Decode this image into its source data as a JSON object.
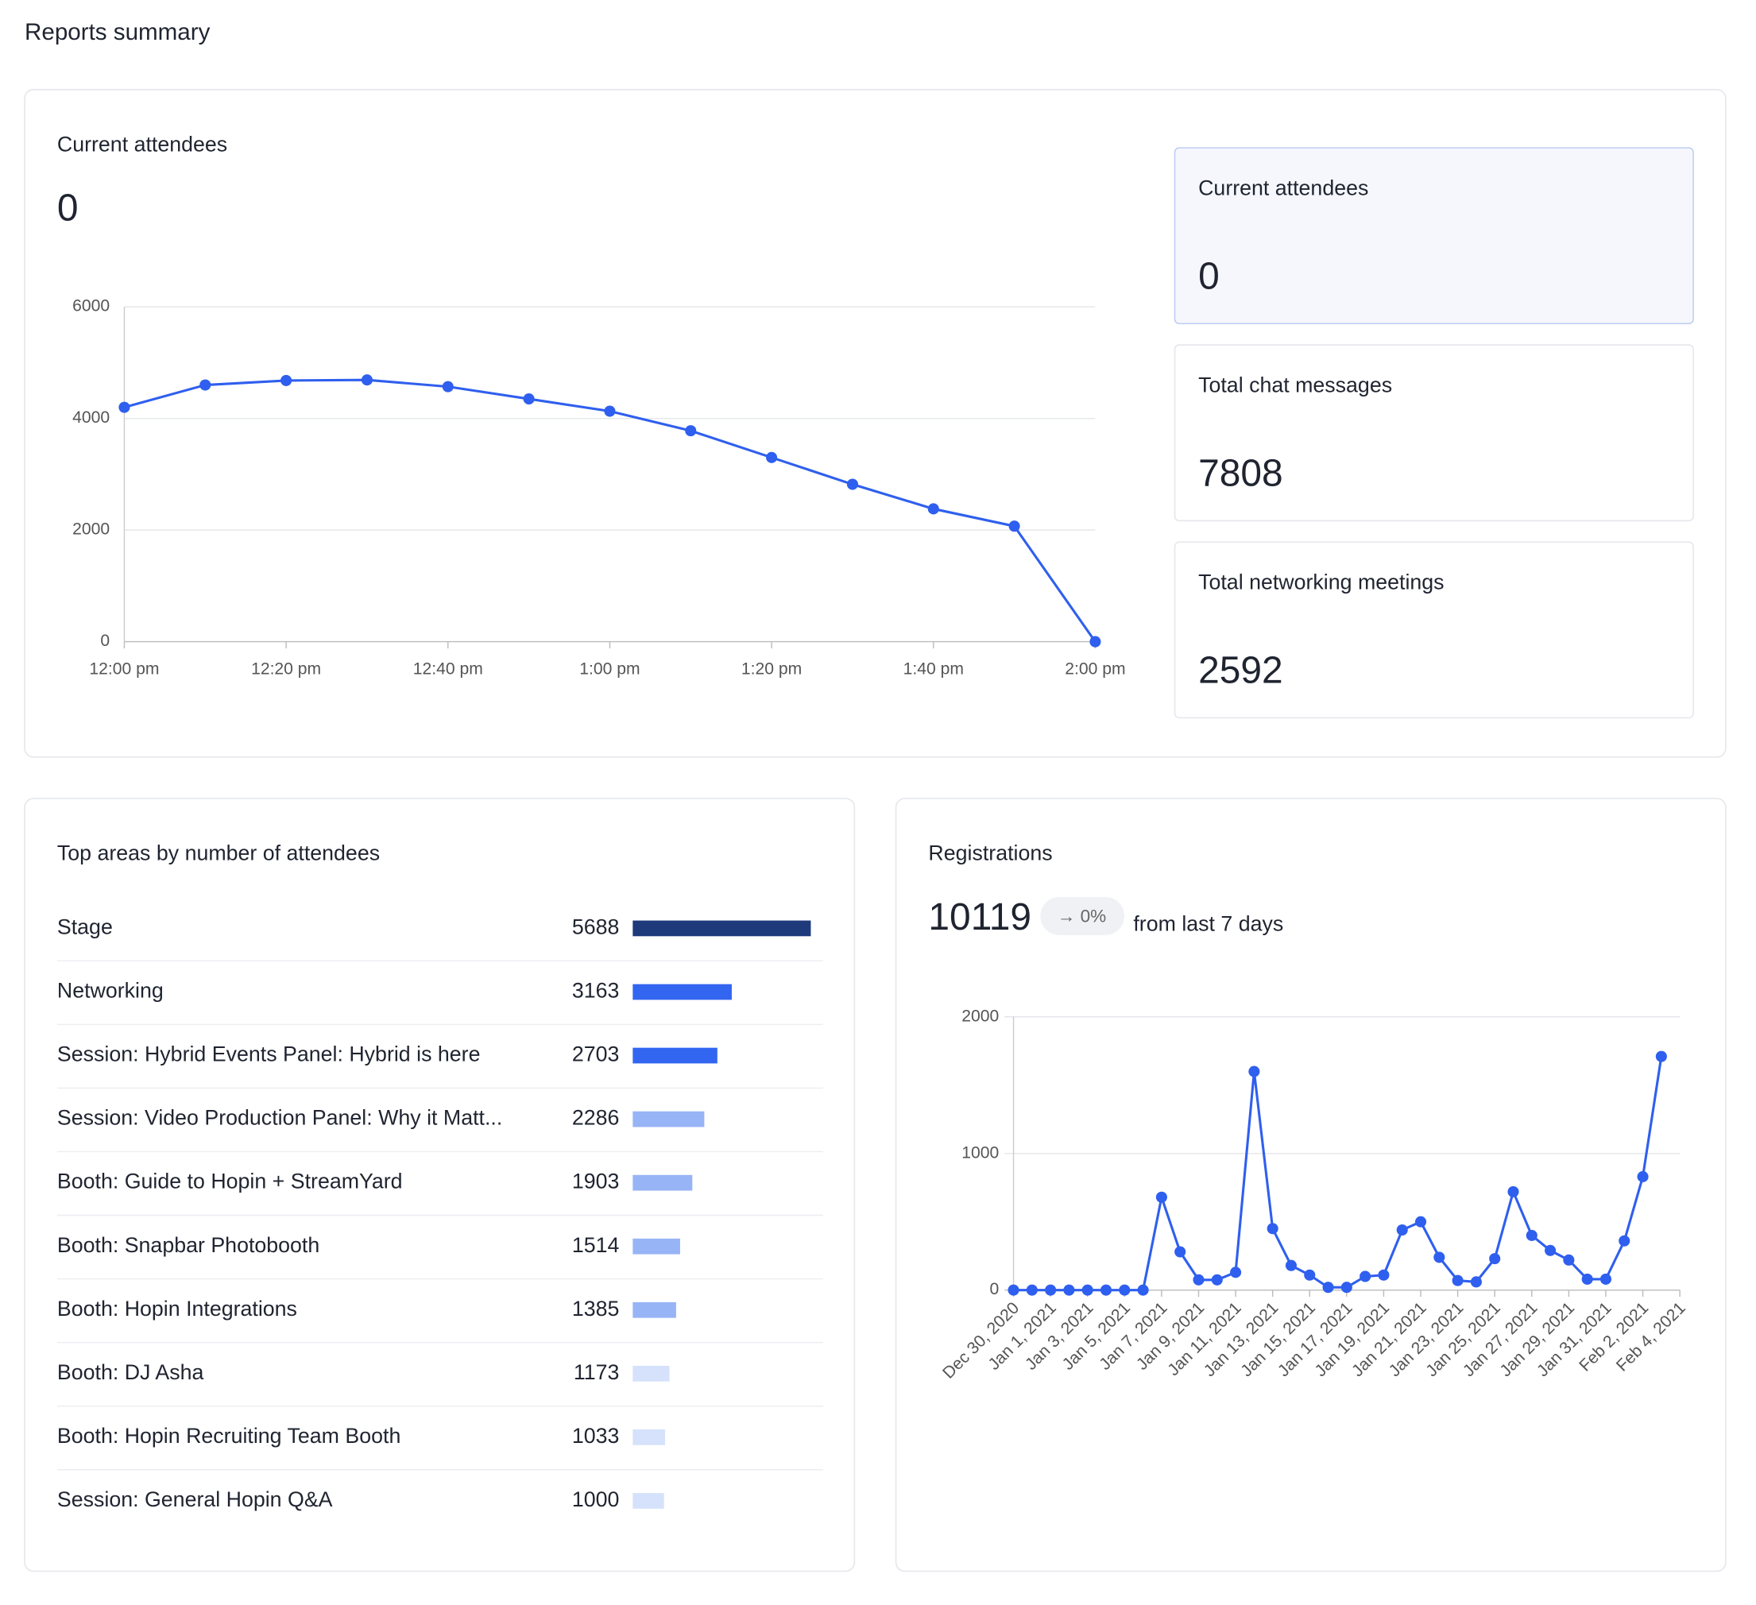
{
  "title": "Reports summary",
  "stats": [
    {
      "label": "Current attendees",
      "value": "0"
    },
    {
      "label": "Total chat messages",
      "value": "7808"
    },
    {
      "label": "Total networking meetings",
      "value": "2592"
    }
  ],
  "chart_data": [
    {
      "type": "line",
      "title": "Current attendees",
      "current": "0",
      "color": "#2f5fee",
      "categories": [
        "12:00 pm",
        null,
        "12:20 pm",
        null,
        "12:40 pm",
        null,
        "1:00 pm",
        null,
        "1:20 pm",
        null,
        "1:40 pm",
        null,
        "2:00 pm"
      ],
      "values": [
        4200,
        4600,
        4680,
        4690,
        4570,
        4350,
        4130,
        3780,
        3300,
        2820,
        2380,
        2070,
        0
      ],
      "ylim": [
        0,
        6000
      ],
      "yticks": [
        0,
        2000,
        4000,
        6000
      ],
      "grid": true
    },
    {
      "type": "bar",
      "orientation": "horizontal",
      "title": "Top areas by number of attendees",
      "categories": [
        "Stage",
        "Networking",
        "Session: Hybrid Events Panel: Hybrid is here",
        "Session: Video Production Panel: Why it Matt...",
        "Booth: Guide to Hopin + StreamYard",
        "Booth: Snapbar Photobooth",
        "Booth: Hopin Integrations",
        "Booth: DJ Asha",
        "Booth: Hopin Recruiting Team Booth",
        "Session: General Hopin Q&A"
      ],
      "values": [
        5688,
        3163,
        2703,
        2286,
        1903,
        1514,
        1385,
        1173,
        1033,
        1000
      ],
      "colors": [
        "#1e3a7b",
        "#3366f0",
        "#3366f0",
        "#97b4f6",
        "#97b4f6",
        "#97b4f6",
        "#97b4f6",
        "#d6e2fb",
        "#d6e2fb",
        "#d6e2fb"
      ]
    },
    {
      "type": "line",
      "title": "Registrations",
      "total": "10119",
      "change": "→ 0%",
      "change_note": "from last 7 days",
      "color": "#2f5fee",
      "categories": [
        "Dec 30, 2020",
        null,
        "Jan 1, 2021",
        null,
        "Jan 3, 2021",
        null,
        "Jan 5, 2021",
        null,
        "Jan 7, 2021",
        null,
        "Jan 9, 2021",
        null,
        "Jan 11, 2021",
        null,
        "Jan 13, 2021",
        null,
        "Jan 15, 2021",
        null,
        "Jan 17, 2021",
        null,
        "Jan 19, 2021",
        null,
        "Jan 21, 2021",
        null,
        "Jan 23, 2021",
        null,
        "Jan 25, 2021",
        null,
        "Jan 27, 2021",
        null,
        "Jan 29, 2021",
        null,
        "Jan 31, 2021",
        null,
        "Feb 2, 2021",
        null,
        "Feb 4, 2021"
      ],
      "values": [
        0,
        0,
        0,
        0,
        0,
        0,
        0,
        0,
        680,
        280,
        75,
        75,
        130,
        1600,
        450,
        180,
        110,
        20,
        20,
        100,
        110,
        440,
        500,
        240,
        70,
        60,
        230,
        720,
        400,
        290,
        220,
        80,
        80,
        360,
        830,
        1710,
        null
      ],
      "ylim": [
        0,
        2000
      ],
      "yticks": [
        0,
        1000,
        2000
      ],
      "grid": true
    }
  ]
}
